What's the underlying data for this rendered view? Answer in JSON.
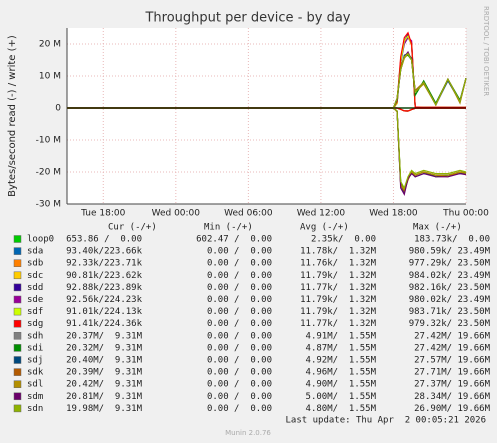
{
  "chart_data": {
    "type": "line",
    "title": "Throughput per device - by day",
    "ylabel": "Bytes/second read (-) / write (+)",
    "side_label": "RRDTOOL / TOBI OETIKER",
    "xlim": [
      0,
      33
    ],
    "xticks": [
      {
        "value": 3,
        "label": "Tue 18:00"
      },
      {
        "value": 9,
        "label": "Wed 00:00"
      },
      {
        "value": 15,
        "label": "Wed 06:00"
      },
      {
        "value": 21,
        "label": "Wed 12:00"
      },
      {
        "value": 27,
        "label": "Wed 18:00"
      },
      {
        "value": 33,
        "label": "Thu 00:00"
      }
    ],
    "ylim": [
      -30000000,
      25000000
    ],
    "yticks": [
      {
        "value": -30000000,
        "label": "-30 M"
      },
      {
        "value": -20000000,
        "label": "-20 M"
      },
      {
        "value": -10000000,
        "label": "-10 M"
      },
      0,
      {
        "value": 10000000,
        "label": "10 M"
      },
      {
        "value": 20000000,
        "label": "20 M"
      }
    ],
    "grid": true,
    "columns": [
      "Cur (-/+)",
      "Min (-/+)",
      "Avg (-/+)",
      "Max (-/+)"
    ],
    "x": [
      0,
      27,
      27.3,
      27.6,
      27.9,
      28.2,
      28.5,
      28.8,
      29.5,
      30.5,
      31.5,
      32.5,
      33
    ],
    "series": [
      {
        "name": "loop0",
        "color": "#00cc00",
        "cur": "653.86 /  0.00",
        "min": "602.47 /  0.00",
        "avg": "2.35k/  0.00",
        "max": "183.73k/  0.00",
        "values": [
          0,
          0,
          0,
          0,
          0,
          0,
          0,
          0,
          0,
          0,
          0,
          0,
          0
        ],
        "values_read": [
          0,
          0,
          0,
          0,
          0,
          0,
          0,
          0,
          0,
          0,
          0,
          0,
          0
        ]
      },
      {
        "name": "sda",
        "color": "#0066b3",
        "cur": "93.40k/223.66k",
        "min": "0.00 /  0.00",
        "avg": "11.78k/  1.32M",
        "max": "980.59k/ 23.49M",
        "values": [
          0,
          0,
          1500000.0,
          14000000.0,
          20000000.0,
          22000000.0,
          20000000.0,
          300000.0,
          200000.0,
          250000.0,
          200000.0,
          200000.0,
          220000.0
        ],
        "values_read": [
          0,
          0,
          0,
          -400000.0,
          -900000.0,
          -950000.0,
          -500000.0,
          -100000.0,
          -90000.0,
          -100000.0,
          -90000.0,
          -90000.0,
          -90000.0
        ]
      },
      {
        "name": "sdb",
        "color": "#ff8000",
        "cur": "92.33k/223.71k",
        "min": "0.00 /  0.00",
        "avg": "11.76k/  1.32M",
        "max": "977.29k/ 23.50M",
        "values": [
          0,
          0,
          1600000.0,
          14500000.0,
          20500000.0,
          22500000.0,
          19500000.0,
          300000.0,
          200000.0,
          240000.0,
          210000.0,
          200000.0,
          220000.0
        ],
        "values_read": [
          0,
          0,
          0,
          -400000.0,
          -900000.0,
          -940000.0,
          -500000.0,
          -100000.0,
          -90000.0,
          -100000.0,
          -90000.0,
          -90000.0,
          -90000.0
        ]
      },
      {
        "name": "sdc",
        "color": "#ffcc00",
        "cur": "90.81k/223.62k",
        "min": "0.00 /  0.00",
        "avg": "11.79k/  1.32M",
        "max": "984.02k/ 23.49M",
        "values": [
          0,
          0,
          1400000.0,
          15000000.0,
          21000000.0,
          22000000.0,
          20500000.0,
          300000.0,
          200000.0,
          250000.0,
          200000.0,
          210000.0,
          220000.0
        ],
        "values_read": [
          0,
          0,
          0,
          -400000.0,
          -900000.0,
          -960000.0,
          -500000.0,
          -100000.0,
          -90000.0,
          -100000.0,
          -90000.0,
          -90000.0,
          -90000.0
        ]
      },
      {
        "name": "sdd",
        "color": "#330099",
        "cur": "92.88k/223.89k",
        "min": "0.00 /  0.00",
        "avg": "11.77k/  1.32M",
        "max": "982.16k/ 23.50M",
        "values": [
          0,
          0,
          1500000.0,
          14000000.0,
          21000000.0,
          23000000.0,
          20000000.0,
          300000.0,
          200000.0,
          250000.0,
          200000.0,
          200000.0,
          220000.0
        ],
        "values_read": [
          0,
          0,
          0,
          -400000.0,
          -900000.0,
          -950000.0,
          -500000.0,
          -100000.0,
          -90000.0,
          -100000.0,
          -90000.0,
          -90000.0,
          -90000.0
        ]
      },
      {
        "name": "sde",
        "color": "#990099",
        "cur": "92.56k/224.23k",
        "min": "0.00 /  0.00",
        "avg": "11.79k/  1.32M",
        "max": "980.02k/ 23.49M",
        "values": [
          0,
          0,
          1700000.0,
          15000000.0,
          20000000.0,
          22000000.0,
          21000000.0,
          300000.0,
          200000.0,
          250000.0,
          200000.0,
          200000.0,
          220000.0
        ],
        "values_read": [
          0,
          0,
          0,
          -400000.0,
          -900000.0,
          -950000.0,
          -500000.0,
          -100000.0,
          -90000.0,
          -100000.0,
          -90000.0,
          -90000.0,
          -90000.0
        ]
      },
      {
        "name": "sdf",
        "color": "#ccff00",
        "cur": "91.01k/224.13k",
        "min": "0.00 /  0.00",
        "avg": "11.79k/  1.32M",
        "max": "983.71k/ 23.50M",
        "values": [
          0,
          0,
          1500000.0,
          14500000.0,
          21000000.0,
          22500000.0,
          20000000.0,
          300000.0,
          200000.0,
          250000.0,
          200000.0,
          200000.0,
          220000.0
        ],
        "values_read": [
          0,
          0,
          0,
          -400000.0,
          -900000.0,
          -950000.0,
          -500000.0,
          -100000.0,
          -90000.0,
          -100000.0,
          -90000.0,
          -90000.0,
          -90000.0
        ]
      },
      {
        "name": "sdg",
        "color": "#ff0000",
        "cur": "91.41k/224.36k",
        "min": "0.00 /  0.00",
        "avg": "11.77k/  1.32M",
        "max": "979.32k/ 23.50M",
        "values": [
          0,
          0,
          2000000.0,
          16000000.0,
          22000000.0,
          23500000.0,
          20000000.0,
          300000.0,
          200000.0,
          250000.0,
          200000.0,
          200000.0,
          220000.0
        ],
        "values_read": [
          0,
          0,
          0,
          -400000.0,
          -900000.0,
          -950000.0,
          -500000.0,
          -100000.0,
          -90000.0,
          -100000.0,
          -90000.0,
          -90000.0,
          -90000.0
        ]
      },
      {
        "name": "sdh",
        "color": "#808080",
        "cur": "20.37M/  9.31M",
        "min": "0.00 /  0.00",
        "avg": "4.91M/  1.55M",
        "max": "27.42M/ 19.66M",
        "values": [
          0,
          0,
          3000000.0,
          12000000.0,
          16000000.0,
          17000000.0,
          15000000.0,
          5000000.0,
          8000000.0,
          1000000.0,
          9000000.0,
          2000000.0,
          9310000.0
        ],
        "values_read": [
          0,
          0,
          -1000000.0,
          -24000000.0,
          -26000000.0,
          -22000000.0,
          -20000000.0,
          -21000000.0,
          -20000000.0,
          -21000000.0,
          -21000000.0,
          -20000000.0,
          -20370000.0
        ]
      },
      {
        "name": "sdi",
        "color": "#008f00",
        "cur": "20.32M/  9.31M",
        "min": "0.00 /  0.00",
        "avg": "4.87M/  1.55M",
        "max": "27.42M/ 19.66M",
        "values": [
          0,
          0,
          3000000.0,
          12500000.0,
          16000000.0,
          16500000.0,
          15000000.0,
          4000000.0,
          8500000.0,
          1500000.0,
          9000000.0,
          2500000.0,
          9310000.0
        ],
        "values_read": [
          0,
          0,
          -1000000.0,
          -23000000.0,
          -26000000.0,
          -22000000.0,
          -20500000.0,
          -21000000.0,
          -20000000.0,
          -21500000.0,
          -21000000.0,
          -20000000.0,
          -20320000.0
        ]
      },
      {
        "name": "sdj",
        "color": "#00487d",
        "cur": "20.40M/  9.31M",
        "min": "0.00 /  0.00",
        "avg": "4.92M/  1.55M",
        "max": "27.57M/ 19.66M",
        "values": [
          0,
          0,
          2500000.0,
          12000000.0,
          16500000.0,
          17000000.0,
          15500000.0,
          5000000.0,
          8000000.0,
          1000000.0,
          8500000.0,
          2000000.0,
          9310000.0
        ],
        "values_read": [
          0,
          0,
          -1000000.0,
          -24000000.0,
          -26500000.0,
          -22000000.0,
          -20000000.0,
          -21500000.0,
          -20500000.0,
          -21000000.0,
          -21000000.0,
          -20500000.0,
          -20400000.0
        ]
      },
      {
        "name": "sdk",
        "color": "#b35a00",
        "cur": "20.39M/  9.31M",
        "min": "0.00 /  0.00",
        "avg": "4.96M/  1.55M",
        "max": "27.71M/ 19.66M",
        "values": [
          0,
          0,
          3000000.0,
          13000000.0,
          16000000.0,
          17000000.0,
          15000000.0,
          5500000.0,
          8000000.0,
          1000000.0,
          9000000.0,
          2000000.0,
          9310000.0
        ],
        "values_read": [
          0,
          0,
          -1200000.0,
          -24000000.0,
          -26000000.0,
          -22500000.0,
          -20000000.0,
          -21000000.0,
          -20000000.0,
          -21000000.0,
          -21500000.0,
          -20000000.0,
          -20390000.0
        ]
      },
      {
        "name": "sdl",
        "color": "#b38f00",
        "cur": "20.42M/  9.31M",
        "min": "0.00 /  0.00",
        "avg": "4.90M/  1.55M",
        "max": "27.37M/ 19.66M",
        "values": [
          0,
          0,
          3000000.0,
          12000000.0,
          15500000.0,
          17000000.0,
          15000000.0,
          5000000.0,
          7500000.0,
          1000000.0,
          9000000.0,
          1500000.0,
          9310000.0
        ],
        "values_read": [
          0,
          0,
          -1000000.0,
          -24000000.0,
          -25500000.0,
          -22000000.0,
          -20000000.0,
          -21000000.0,
          -20000000.0,
          -21000000.0,
          -21000000.0,
          -20000000.0,
          -20420000.0
        ]
      },
      {
        "name": "sdm",
        "color": "#6b006b",
        "cur": "20.81M/  9.31M",
        "min": "0.00 /  0.00",
        "avg": "5.00M/  1.55M",
        "max": "28.34M/ 19.66M",
        "values": [
          0,
          0,
          3000000.0,
          12000000.0,
          16000000.0,
          17500000.0,
          15000000.0,
          5000000.0,
          8000000.0,
          1000000.0,
          9000000.0,
          2000000.0,
          9310000.0
        ],
        "values_read": [
          0,
          0,
          -1000000.0,
          -25000000.0,
          -27000000.0,
          -22000000.0,
          -20500000.0,
          -21500000.0,
          -20500000.0,
          -21500000.0,
          -21500000.0,
          -20500000.0,
          -20810000.0
        ]
      },
      {
        "name": "sdn",
        "color": "#8fb300",
        "cur": "19.98M/  9.31M",
        "min": "0.00 /  0.00",
        "avg": "4.80M/  1.55M",
        "max": "26.90M/ 19.66M",
        "values": [
          0,
          0,
          3000000.0,
          12000000.0,
          16000000.0,
          17000000.0,
          15000000.0,
          5000000.0,
          8000000.0,
          1000000.0,
          9000000.0,
          2000000.0,
          9310000.0
        ],
        "values_read": [
          0,
          0,
          -1000000.0,
          -23000000.0,
          -25000000.0,
          -21500000.0,
          -19500000.0,
          -20500000.0,
          -19500000.0,
          -20500000.0,
          -20500000.0,
          -19500000.0,
          -19980000.0
        ]
      }
    ],
    "last_update": "Last update: Thu Apr  2 00:05:21 2026",
    "footer": "Munin 2.0.76"
  }
}
